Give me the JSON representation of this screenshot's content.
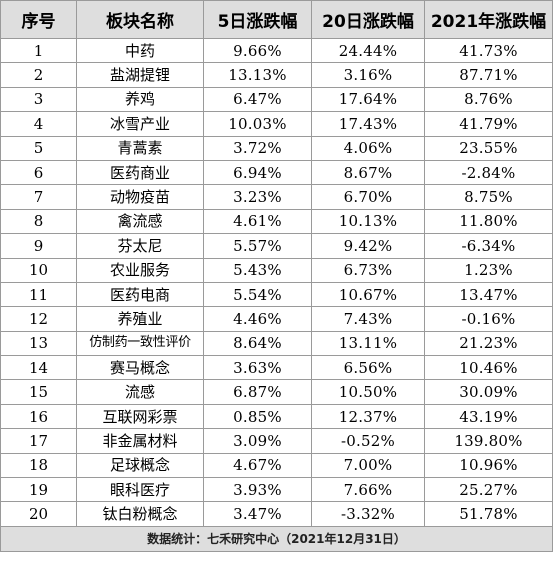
{
  "table": {
    "headers": [
      "序号",
      "板块名称",
      "5日涨跌幅",
      "20日涨跌幅",
      "2021年涨跌幅"
    ],
    "rows": [
      [
        "1",
        "中药",
        "9.66%",
        "24.44%",
        "41.73%"
      ],
      [
        "2",
        "盐湖提锂",
        "13.13%",
        "3.16%",
        "87.71%"
      ],
      [
        "3",
        "养鸡",
        "6.47%",
        "17.64%",
        "8.76%"
      ],
      [
        "4",
        "冰雪产业",
        "10.03%",
        "17.43%",
        "41.79%"
      ],
      [
        "5",
        "青蒿素",
        "3.72%",
        "4.06%",
        "23.55%"
      ],
      [
        "6",
        "医药商业",
        "6.94%",
        "8.67%",
        "-2.84%"
      ],
      [
        "7",
        "动物疫苗",
        "3.23%",
        "6.70%",
        "8.75%"
      ],
      [
        "8",
        "禽流感",
        "4.61%",
        "10.13%",
        "11.80%"
      ],
      [
        "9",
        "芬太尼",
        "5.57%",
        "9.42%",
        "-6.34%"
      ],
      [
        "10",
        "农业服务",
        "5.43%",
        "6.73%",
        "1.23%"
      ],
      [
        "11",
        "医药电商",
        "5.54%",
        "10.67%",
        "13.47%"
      ],
      [
        "12",
        "养殖业",
        "4.46%",
        "7.43%",
        "-0.16%"
      ],
      [
        "13",
        "仿制药一致性评价",
        "8.64%",
        "13.11%",
        "21.23%"
      ],
      [
        "14",
        "赛马概念",
        "3.63%",
        "6.56%",
        "10.46%"
      ],
      [
        "15",
        "流感",
        "6.87%",
        "10.50%",
        "30.09%"
      ],
      [
        "16",
        "互联网彩票",
        "0.85%",
        "12.37%",
        "43.19%"
      ],
      [
        "17",
        "非金属材料",
        "3.09%",
        "-0.52%",
        "139.80%"
      ],
      [
        "18",
        "足球概念",
        "4.67%",
        "7.00%",
        "10.96%"
      ],
      [
        "19",
        "眼科医疗",
        "3.93%",
        "7.66%",
        "25.27%"
      ],
      [
        "20",
        "钛白粉概念",
        "3.47%",
        "-3.32%",
        "51.78%"
      ]
    ],
    "footer": "数据统计：七禾研究中心（2021年12月31日）"
  }
}
